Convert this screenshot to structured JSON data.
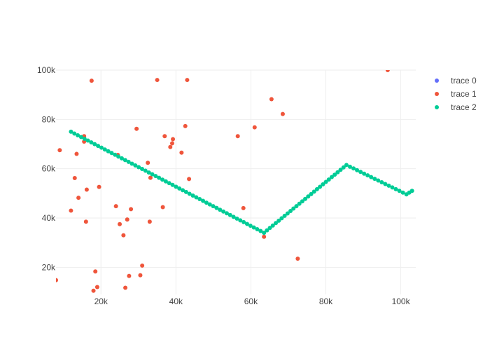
{
  "chart_data": {
    "type": "scatter",
    "title": "",
    "xlabel": "",
    "ylabel": "",
    "xlim": [
      8000,
      104000
    ],
    "ylim": [
      9000,
      100000
    ],
    "grid": true,
    "legend_position": "top-right",
    "x_ticks": [
      {
        "value": 20000,
        "label": "20k"
      },
      {
        "value": 40000,
        "label": "40k"
      },
      {
        "value": 60000,
        "label": "60k"
      },
      {
        "value": 80000,
        "label": "80k"
      },
      {
        "value": 100000,
        "label": "100k"
      }
    ],
    "y_ticks": [
      {
        "value": 20000,
        "label": "20k"
      },
      {
        "value": 40000,
        "label": "40k"
      },
      {
        "value": 60000,
        "label": "60k"
      },
      {
        "value": 80000,
        "label": "80k"
      },
      {
        "value": 100000,
        "label": "100k"
      }
    ],
    "series": [
      {
        "name": "trace 0",
        "color": "#636efa",
        "points": []
      },
      {
        "name": "trace 1",
        "color": "#ef553b",
        "points": [
          [
            8000,
            14800
          ],
          [
            9000,
            67500
          ],
          [
            12000,
            43000
          ],
          [
            13000,
            56200
          ],
          [
            13500,
            66000
          ],
          [
            14000,
            48200
          ],
          [
            15500,
            73200
          ],
          [
            15500,
            71000
          ],
          [
            16000,
            38500
          ],
          [
            16200,
            51500
          ],
          [
            17500,
            95700
          ],
          [
            18000,
            10500
          ],
          [
            18500,
            18300
          ],
          [
            19000,
            12000
          ],
          [
            19500,
            52600
          ],
          [
            24000,
            44800
          ],
          [
            24500,
            65600
          ],
          [
            25000,
            37500
          ],
          [
            26000,
            33000
          ],
          [
            26500,
            11700
          ],
          [
            27000,
            39400
          ],
          [
            27500,
            16500
          ],
          [
            28000,
            43600
          ],
          [
            29500,
            76200
          ],
          [
            30500,
            16800
          ],
          [
            31000,
            20700
          ],
          [
            32500,
            62400
          ],
          [
            33000,
            38500
          ],
          [
            33200,
            56300
          ],
          [
            35000,
            96000
          ],
          [
            36500,
            44400
          ],
          [
            37000,
            73200
          ],
          [
            38500,
            68800
          ],
          [
            39000,
            70300
          ],
          [
            39200,
            72000
          ],
          [
            41500,
            66500
          ],
          [
            42500,
            77300
          ],
          [
            43000,
            96000
          ],
          [
            43500,
            55800
          ],
          [
            56500,
            73200
          ],
          [
            58000,
            44000
          ],
          [
            61000,
            76800
          ],
          [
            63500,
            32400
          ],
          [
            65500,
            88200
          ],
          [
            68500,
            82200
          ],
          [
            72500,
            23500
          ],
          [
            96500,
            100000
          ]
        ]
      },
      {
        "name": "trace 2",
        "color": "#00cc96",
        "points": [
          [
            12000,
            75000
          ],
          [
            63500,
            34000
          ],
          [
            85500,
            61500
          ],
          [
            101500,
            49600
          ],
          [
            103000,
            51000
          ]
        ]
      }
    ]
  }
}
